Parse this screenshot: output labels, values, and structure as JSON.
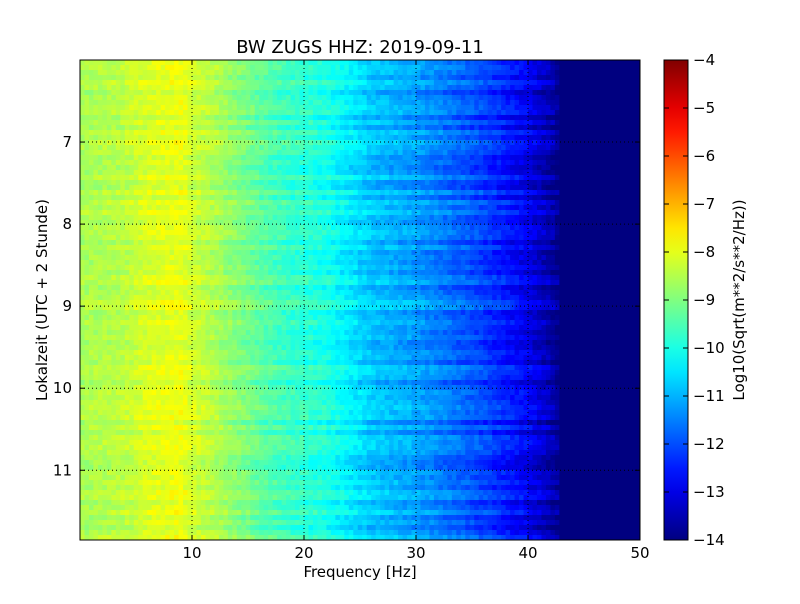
{
  "chart_data": {
    "type": "heatmap",
    "title": "BW ZUGS HHZ: 2019-09-11",
    "xlabel": "Frequency [Hz]",
    "ylabel": "Lokalzeit (UTC + 2 Stunde)",
    "colorbar_label": "Log10(Sqrt(m**2/s**2/Hz))",
    "colormap": "jet",
    "xlim": [
      0,
      50
    ],
    "ylim": [
      6.0,
      11.85
    ],
    "y_inverted": true,
    "clim": [
      -14,
      -4
    ],
    "grid": true,
    "x_ticks": [
      10,
      20,
      30,
      40,
      50
    ],
    "x_tick_labels": [
      "10",
      "20",
      "30",
      "40",
      "50"
    ],
    "y_ticks": [
      7,
      8,
      9,
      10,
      11
    ],
    "y_tick_labels": [
      "7",
      "8",
      "9",
      "10",
      "11"
    ],
    "colorbar_ticks": [
      -4,
      -5,
      -6,
      -7,
      -8,
      -9,
      -10,
      -11,
      -12,
      -13,
      -14
    ],
    "colorbar_tick_labels": [
      "−4",
      "−5",
      "−6",
      "−7",
      "−8",
      "−9",
      "−10",
      "−11",
      "−12",
      "−13",
      "−14"
    ],
    "frequency_profile": {
      "frequency_hz": [
        0,
        2,
        4,
        6,
        8,
        9,
        10,
        12,
        14,
        16,
        18,
        20,
        22,
        24,
        26,
        28,
        30,
        32,
        34,
        36,
        38,
        40,
        41,
        42,
        43,
        44,
        46,
        50
      ],
      "log10_amplitude": [
        -8.6,
        -8.5,
        -8.4,
        -8.1,
        -8.0,
        -7.9,
        -8.2,
        -8.5,
        -8.9,
        -9.3,
        -9.6,
        -9.8,
        -10.0,
        -10.4,
        -10.8,
        -11.0,
        -11.2,
        -11.5,
        -11.8,
        -12.1,
        -12.5,
        -12.9,
        -13.2,
        -13.5,
        -14.0,
        -14.0,
        -14.0,
        -14.0
      ]
    }
  }
}
